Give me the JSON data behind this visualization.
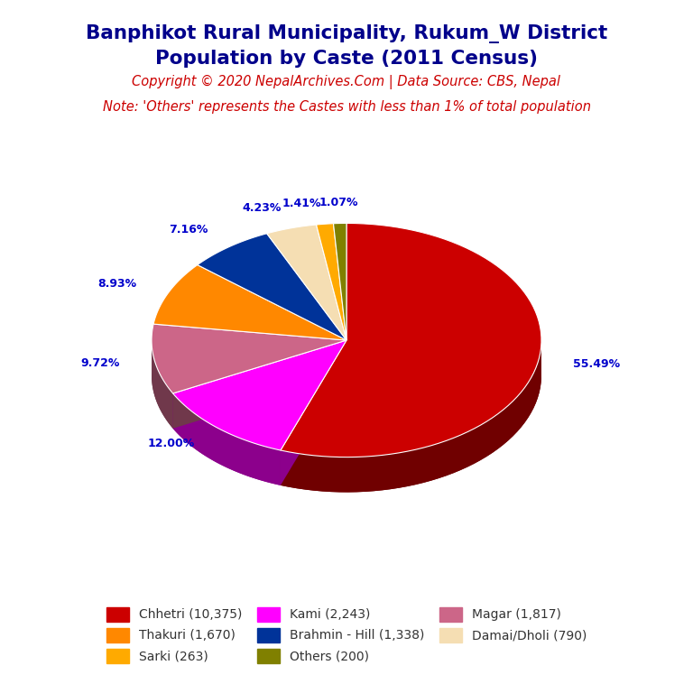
{
  "title_line1": "Banphikot Rural Municipality, Rukum_W District",
  "title_line2": "Population by Caste (2011 Census)",
  "copyright": "Copyright © 2020 NepalArchives.Com | Data Source: CBS, Nepal",
  "note": "Note: 'Others' represents the Castes with less than 1% of total population",
  "labels": [
    "Chhetri",
    "Kami",
    "Magar",
    "Thakuri",
    "Brahmin - Hill",
    "Damai/Dholi",
    "Sarki",
    "Others"
  ],
  "values": [
    10375,
    2243,
    1817,
    1670,
    1338,
    790,
    263,
    200
  ],
  "percentages": [
    55.49,
    12.0,
    9.72,
    8.93,
    7.16,
    4.23,
    1.41,
    1.07
  ],
  "colors": [
    "#cc0000",
    "#ff00ff",
    "#cc6688",
    "#ff8800",
    "#003399",
    "#f5deb3",
    "#ffaa00",
    "#808000"
  ],
  "legend_order": [
    0,
    1,
    2,
    3,
    4,
    5,
    6,
    7
  ],
  "legend_labels": [
    "Chhetri (10,375)",
    "Kami (2,243)",
    "Magar (1,817)",
    "Thakuri (1,670)",
    "Brahmin - Hill (1,338)",
    "Damai/Dholi (790)",
    "Sarki (263)",
    "Others (200)"
  ],
  "title_color": "#00008B",
  "copyright_color": "#cc0000",
  "note_color": "#cc0000",
  "pct_label_color": "#0000cc",
  "background_color": "#ffffff"
}
